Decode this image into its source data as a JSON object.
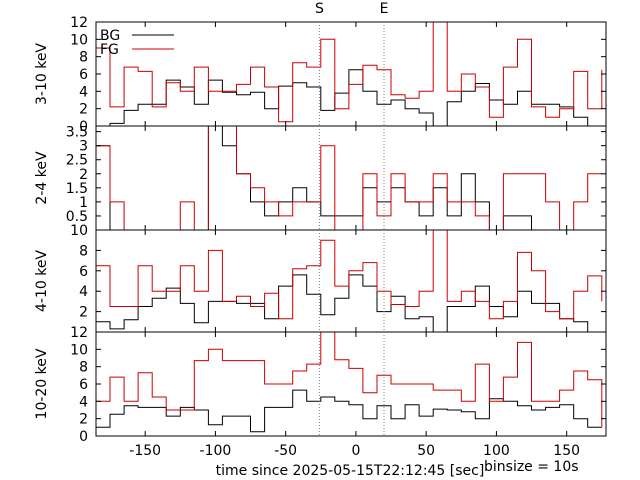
{
  "figure": {
    "xlabel": "time since 2025-05-15T22:12:45 [sec]",
    "binsize_label": "binsize = 10s",
    "markers": [
      {
        "label": "S",
        "x": -26
      },
      {
        "label": "E",
        "x": 20
      }
    ],
    "xticks": [
      -150,
      -100,
      -50,
      0,
      50,
      100,
      150
    ],
    "legend": [
      {
        "label": "BG",
        "color": "#000000"
      },
      {
        "label": "FG",
        "color": "#cc0000"
      }
    ]
  },
  "chart_data": [
    {
      "type": "line",
      "step": true,
      "panel_label": "3-10 keV",
      "xlim": [
        -185,
        178
      ],
      "ylim": [
        0,
        12
      ],
      "yticks": [
        0,
        2,
        4,
        6,
        8,
        10,
        12
      ],
      "x_edges": [
        -185,
        -175,
        -165,
        -155,
        -145,
        -135,
        -125,
        -115,
        -105,
        -95,
        -85,
        -75,
        -65,
        -55,
        -45,
        -35,
        -25,
        -15,
        -5,
        5,
        15,
        25,
        35,
        45,
        55,
        65,
        75,
        85,
        95,
        105,
        115,
        125,
        135,
        145,
        155,
        165,
        175
      ],
      "series": [
        {
          "name": "BG",
          "color": "#000000",
          "values": [
            0,
            0.3,
            1.8,
            2.5,
            2.5,
            5.3,
            4.5,
            2.5,
            5.3,
            3.9,
            3.6,
            3.9,
            2.0,
            4.6,
            5.0,
            4.5,
            1.8,
            3.8,
            6.5,
            4.0,
            2.5,
            3.0,
            2.0,
            1.5,
            0,
            2.8,
            4.0,
            4.9,
            3.0,
            2.5,
            4.0,
            2.5,
            2.5,
            2.2,
            1.0,
            0,
            0
          ]
        },
        {
          "name": "FG",
          "color": "#cc0000",
          "values": [
            9.0,
            2.2,
            6.8,
            6.3,
            2.2,
            5.0,
            4.0,
            6.8,
            4.0,
            4.0,
            4.8,
            6.8,
            4.5,
            0.5,
            7.3,
            6.8,
            10.0,
            2.0,
            4.8,
            7.0,
            6.5,
            3.6,
            3.2,
            4.0,
            12.0,
            4.0,
            6.0,
            4.5,
            1.0,
            6.8,
            10.0,
            2.2,
            1.0,
            2.0,
            6.3,
            2.0,
            6.5
          ]
        }
      ]
    },
    {
      "type": "line",
      "step": true,
      "panel_label": "2-4 keV",
      "xlim": [
        -185,
        178
      ],
      "ylim": [
        0,
        3.7
      ],
      "yticks": [
        0.5,
        1,
        1.5,
        2,
        2.5,
        3,
        3.5
      ],
      "x_edges": [
        -185,
        -175,
        -165,
        -155,
        -145,
        -135,
        -125,
        -115,
        -105,
        -95,
        -85,
        -75,
        -65,
        -55,
        -45,
        -35,
        -25,
        -15,
        -5,
        5,
        15,
        25,
        35,
        45,
        55,
        65,
        75,
        85,
        95,
        105,
        115,
        125,
        135,
        145,
        155,
        165,
        175
      ],
      "series": [
        {
          "name": "BG",
          "color": "#000000",
          "values": [
            3.0,
            0,
            0,
            0,
            0,
            0,
            0,
            0,
            4.0,
            3.0,
            2.0,
            1.0,
            0.5,
            1.0,
            1.5,
            1.0,
            0.5,
            0.5,
            0.5,
            1.5,
            1.0,
            1.5,
            1.0,
            0.5,
            1.5,
            0.5,
            2.0,
            1.0,
            0,
            0.5,
            0.5,
            0,
            0,
            0,
            0,
            0,
            0
          ]
        },
        {
          "name": "FG",
          "color": "#cc0000",
          "values": [
            3.0,
            1.0,
            0,
            0,
            0,
            0,
            1.0,
            0,
            4.0,
            4.0,
            2.0,
            1.5,
            1.0,
            0.5,
            1.0,
            1.0,
            3.0,
            0,
            0,
            2.0,
            0.5,
            2.0,
            1.0,
            1.0,
            2.0,
            1.0,
            1.0,
            0.5,
            0,
            2.0,
            2.0,
            2.0,
            1.0,
            0,
            1.0,
            2.0,
            2.0
          ]
        }
      ]
    },
    {
      "type": "line",
      "step": true,
      "panel_label": "4-10 keV",
      "xlim": [
        -185,
        178
      ],
      "ylim": [
        0,
        10
      ],
      "yticks": [
        2,
        4,
        6,
        8,
        10
      ],
      "x_edges": [
        -185,
        -175,
        -165,
        -155,
        -145,
        -135,
        -125,
        -115,
        -105,
        -95,
        -85,
        -75,
        -65,
        -55,
        -45,
        -35,
        -25,
        -15,
        -5,
        5,
        15,
        25,
        35,
        45,
        55,
        65,
        75,
        85,
        95,
        105,
        115,
        125,
        135,
        145,
        155,
        165,
        175
      ],
      "series": [
        {
          "name": "BG",
          "color": "#000000",
          "values": [
            1.0,
            0.3,
            1.2,
            2.5,
            3.3,
            4.3,
            2.8,
            0.9,
            3.0,
            3.0,
            2.8,
            2.8,
            1.3,
            4.5,
            5.6,
            3.7,
            1.7,
            3.3,
            5.6,
            4.5,
            2.0,
            3.5,
            1.3,
            1.5,
            0,
            2.5,
            2.5,
            4.5,
            2.5,
            1.5,
            4.0,
            2.8,
            2.8,
            1.3,
            1.0,
            0,
            0
          ]
        },
        {
          "name": "FG",
          "color": "#cc0000",
          "values": [
            6.5,
            2.5,
            2.5,
            6.5,
            4.0,
            4.0,
            6.5,
            4.0,
            8.0,
            3.0,
            3.5,
            2.5,
            3.8,
            1.3,
            6.2,
            6.5,
            9.0,
            4.5,
            6.0,
            6.8,
            4.0,
            2.7,
            2.5,
            4.0,
            10.0,
            3.0,
            4.0,
            3.0,
            1.3,
            3.0,
            7.8,
            6.0,
            2.0,
            1.3,
            4.0,
            5.5,
            3.0
          ]
        }
      ]
    },
    {
      "type": "line",
      "step": true,
      "panel_label": "10-20 keV",
      "xlim": [
        -185,
        178
      ],
      "ylim": [
        0,
        12
      ],
      "yticks": [
        0,
        2,
        4,
        6,
        8,
        10,
        12
      ],
      "x_edges": [
        -185,
        -175,
        -165,
        -155,
        -145,
        -135,
        -125,
        -115,
        -105,
        -95,
        -85,
        -75,
        -65,
        -55,
        -45,
        -35,
        -25,
        -15,
        -5,
        5,
        15,
        25,
        35,
        45,
        55,
        65,
        75,
        85,
        95,
        105,
        115,
        125,
        135,
        145,
        155,
        165,
        175
      ],
      "series": [
        {
          "name": "BG",
          "color": "#000000",
          "values": [
            1.0,
            2.5,
            3.5,
            3.3,
            3.3,
            2.3,
            3.3,
            3.0,
            1.3,
            2.3,
            2.3,
            0.5,
            3.3,
            3.3,
            5.3,
            4.0,
            4.5,
            4.0,
            3.6,
            2.0,
            3.5,
            2.0,
            3.6,
            2.3,
            3.1,
            3.0,
            2.8,
            2.0,
            4.3,
            4.0,
            3.5,
            3.0,
            3.3,
            3.6,
            2.0,
            1.0,
            1.0
          ]
        },
        {
          "name": "FG",
          "color": "#cc0000",
          "values": [
            4.0,
            6.8,
            4.0,
            7.3,
            4.5,
            3.0,
            3.0,
            8.7,
            10.0,
            8.7,
            8.7,
            8.7,
            6.0,
            6.0,
            7.5,
            8.3,
            12.0,
            8.8,
            7.8,
            5.0,
            7.0,
            6.0,
            6.0,
            6.0,
            5.3,
            5.3,
            4.0,
            8.3,
            4.0,
            6.8,
            10.8,
            4.0,
            4.0,
            5.3,
            7.5,
            6.5,
            1.0
          ]
        }
      ]
    }
  ]
}
